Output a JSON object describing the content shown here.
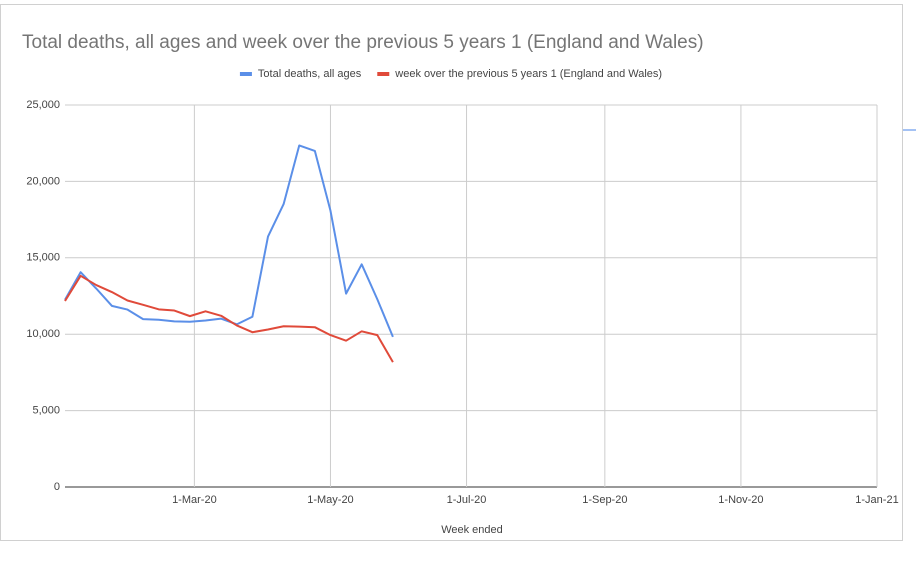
{
  "chart_data": {
    "type": "line",
    "title": "Total deaths, all ages and week over the previous 5 years 1 (England and Wales)",
    "x_label": "Week ended",
    "x": [
      "2020-01-03",
      "2020-01-10",
      "2020-01-17",
      "2020-01-24",
      "2020-01-31",
      "2020-02-07",
      "2020-02-14",
      "2020-02-21",
      "2020-02-28",
      "2020-03-06",
      "2020-03-13",
      "2020-03-20",
      "2020-03-27",
      "2020-04-03",
      "2020-04-10",
      "2020-04-17",
      "2020-04-24",
      "2020-05-01",
      "2020-05-08",
      "2020-05-15",
      "2020-05-22",
      "2020-05-29"
    ],
    "series": [
      {
        "name": "Total deaths, all ages",
        "color": "#5b8fe8",
        "values": [
          12254,
          14058,
          12990,
          11856,
          11612,
          10986,
          10944,
          10841,
          10816,
          10895,
          11019,
          10645,
          11141,
          16387,
          18516,
          22351,
          21997,
          18084,
          12657,
          14573,
          12288,
          9824
        ]
      },
      {
        "name": "week over the previous 5 years 1 (England and Wales)",
        "color": "#e04a3a",
        "values": [
          12175,
          13822,
          13216,
          12760,
          12206,
          11925,
          11627,
          11548,
          11183,
          11498,
          11205,
          10573,
          10130,
          10305,
          10520,
          10497,
          10458,
          9941,
          9576,
          10188,
          9940,
          8171
        ]
      }
    ],
    "xlim": [
      "2020-01-03",
      "2021-01-01"
    ],
    "xticks": [
      {
        "value": "2020-03-01",
        "label": "1-Mar-20"
      },
      {
        "value": "2020-05-01",
        "label": "1-May-20"
      },
      {
        "value": "2020-07-01",
        "label": "1-Jul-20"
      },
      {
        "value": "2020-09-01",
        "label": "1-Sep-20"
      },
      {
        "value": "2020-11-01",
        "label": "1-Nov-20"
      },
      {
        "value": "2021-01-01",
        "label": "1-Jan-21"
      }
    ],
    "ylim": [
      0,
      25000
    ],
    "yticks": [
      0,
      {
        "value": 5000,
        "label": "5,000"
      },
      {
        "value": 10000,
        "label": "10,000"
      },
      {
        "value": 15000,
        "label": "15,000"
      },
      {
        "value": 20000,
        "label": "20,000"
      },
      {
        "value": 25000,
        "label": "25,000"
      }
    ],
    "grid": true,
    "legend": "top"
  }
}
